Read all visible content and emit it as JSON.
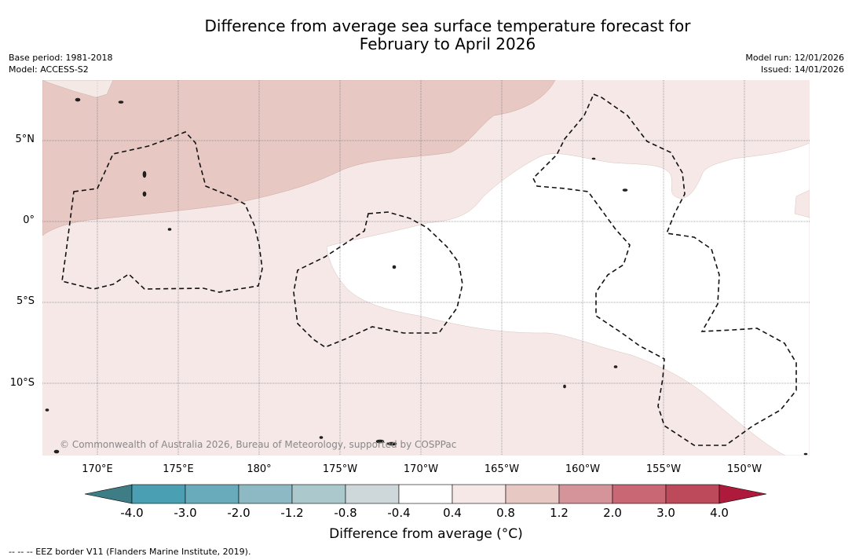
{
  "header": {
    "title_line1": "Difference from average sea surface temperature forecast for",
    "title_line2": "February to April 2026",
    "base_period": "Base period: 1981-2018",
    "model": "Model: ACCESS-S2",
    "model_run": "Model run: 12/01/2026",
    "issued": "Issued: 14/01/2026"
  },
  "map": {
    "lat_labels": [
      "5°N",
      "0°",
      "5°S",
      "10°S"
    ],
    "lon_labels": [
      "170°E",
      "175°E",
      "180°",
      "175°W",
      "170°W",
      "165°W",
      "160°W",
      "155°W",
      "150°W"
    ],
    "copyright": "© Commonwealth of Australia 2026, Bureau of Meteorology, supported by COSPPac",
    "fill_colors": {
      "level_0_4_0_8": "#f5e8e6",
      "level_0_8_1_2": "#e7c8c2",
      "neutral": "#ffffff"
    }
  },
  "colorbar": {
    "label": "Difference from average (°C)",
    "ticks": [
      "-4.0",
      "-3.0",
      "-2.0",
      "-1.2",
      "-0.8",
      "-0.4",
      "0.4",
      "0.8",
      "1.2",
      "2.0",
      "3.0",
      "4.0"
    ],
    "colors": [
      "#4aa0b2",
      "#6aabbb",
      "#8cb9c3",
      "#abc9cd",
      "#ced8da",
      "#ffffff",
      "#f5e8e6",
      "#e7c8c2",
      "#d4949a",
      "#c96874",
      "#bd4a5a"
    ],
    "low_extend_color": "#3e7d86",
    "high_extend_color": "#ae1a3c"
  },
  "footer": {
    "eez_note": "--  --  -- EEZ border V11 (Flanders Marine Institute, 2019)."
  }
}
